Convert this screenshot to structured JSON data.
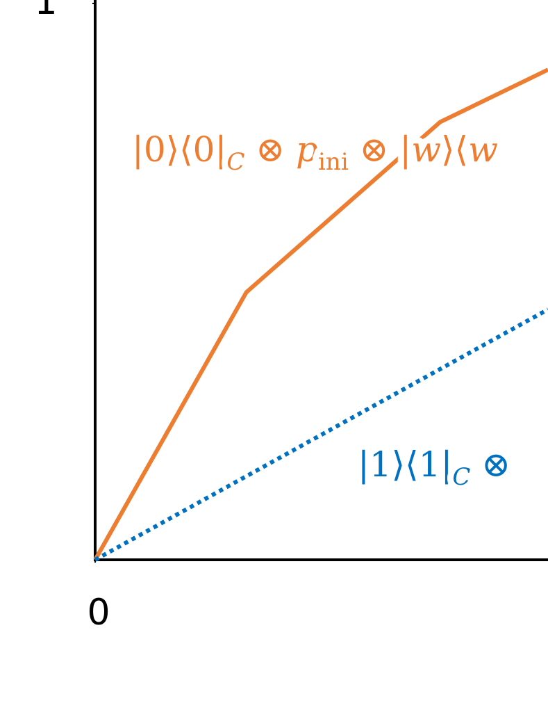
{
  "chart_data": {
    "type": "line",
    "x": [
      0,
      0.334,
      0.762,
      1
    ],
    "xlim": [
      0,
      1
    ],
    "ylim": [
      0,
      1
    ],
    "xticks": [
      0
    ],
    "yticks": [
      1
    ],
    "series": [
      {
        "name": "orange",
        "color": "#ED7D31",
        "style": "solid",
        "x": [
          0,
          0.334,
          0.762,
          1
        ],
        "values": [
          0,
          0.481,
          0.787,
          0.881
        ]
      },
      {
        "name": "blue",
        "color": "#0070C0",
        "style": "dotted",
        "x": [
          0,
          1
        ],
        "values": [
          0,
          0.45
        ]
      }
    ],
    "annotations": [
      {
        "color": "#ED7D31",
        "parts": [
          {
            "text": "|0⟩⟨0|"
          },
          {
            "text": "C",
            "sub": true
          },
          {
            "text": " ⊗ "
          },
          {
            "text": "p",
            "italic": true
          },
          {
            "text": "ini",
            "sub": true
          },
          {
            "text": " ⊗ |"
          },
          {
            "text": "w",
            "italic": true
          },
          {
            "text": "⟩⟨"
          },
          {
            "text": "w",
            "italic": true
          }
        ]
      },
      {
        "color": "#0070C0",
        "parts": [
          {
            "text": "|1⟩⟨1|"
          },
          {
            "text": "C",
            "sub": true
          },
          {
            "text": " ⊗"
          }
        ]
      }
    ]
  }
}
